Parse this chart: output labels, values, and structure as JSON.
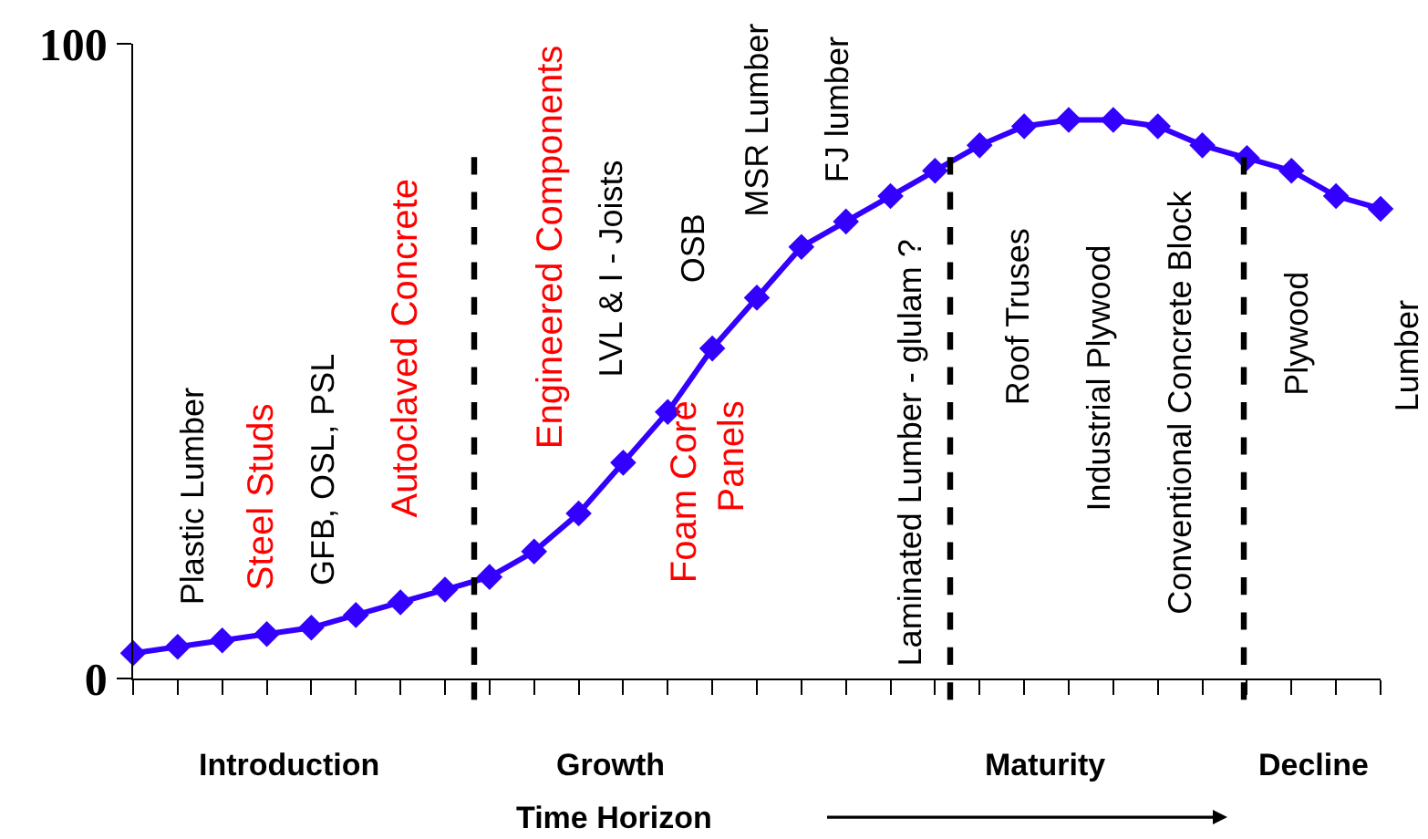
{
  "chart_data": {
    "type": "line",
    "categories": [
      null,
      null,
      null,
      null,
      null,
      null,
      null,
      null,
      null,
      null,
      null,
      null,
      null,
      null,
      null,
      null,
      null,
      null,
      null,
      null,
      null,
      null,
      null,
      null,
      null,
      null,
      null,
      null,
      null
    ],
    "values": [
      4,
      5,
      6,
      7,
      8,
      10,
      12,
      14,
      16,
      20,
      26,
      34,
      42,
      52,
      60,
      68,
      72,
      76,
      80,
      84,
      87,
      88,
      88,
      87,
      84,
      82,
      80,
      76,
      74
    ],
    "color": "#3300ff",
    "marker": "diamond",
    "line_style": "solid",
    "ylim": [
      0,
      100
    ],
    "yticks": [
      0,
      100
    ],
    "tick_labels": "y",
    "xlabel": "Time Horizon",
    "annotations": [
      "Plastic Lumber",
      "Steel Studs",
      "GFB, OSL, PSL",
      "Autoclaved Concrete",
      "Engineered Components",
      "LVL & I - Joists",
      "OSB",
      "MSR Lumber",
      "FJ lumber",
      "Foam Core\nPanels",
      "Laminated Lumber - glulam ?",
      "Roof Truses",
      "Industrial Plywood",
      "Conventional Concrete Block",
      "Plywood",
      "Lumber",
      "Introduction",
      "Growth",
      "Maturity",
      "Decline"
    ]
  }
}
